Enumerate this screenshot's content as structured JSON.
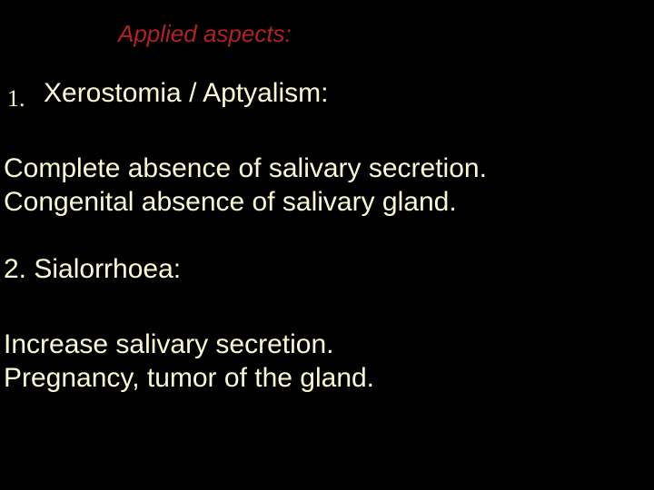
{
  "colors": {
    "background": "#000000",
    "title": "#b22222",
    "num": "#fafad2",
    "heading": "#fafad2",
    "body": "#fafad2"
  },
  "title": "Applied aspects:",
  "item1": {
    "number": "1.",
    "heading": "Xerostomia  / Aptyalism:",
    "body": "Complete absence of salivary secretion.\nCongenital absence of salivary gland."
  },
  "item2": {
    "heading": "2. Sialorrhoea:",
    "body": "Increase salivary secretion.\nPregnancy, tumor of the gland."
  }
}
